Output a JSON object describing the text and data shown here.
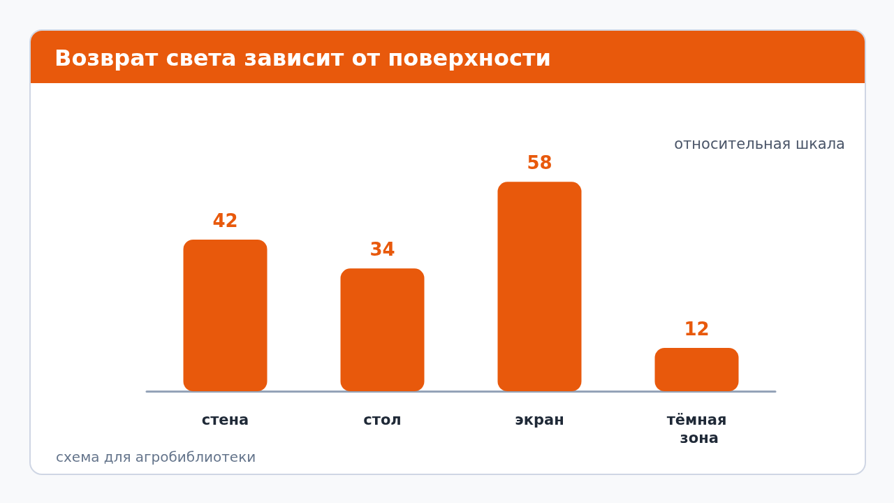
{
  "chart_data": {
    "type": "bar",
    "title": "Возврат света зависит от поверхности",
    "subtitle": "относительная шкала",
    "categories": [
      "стена",
      "стол",
      "экран",
      "тёмная зона"
    ],
    "values": [
      42,
      34,
      58,
      12
    ],
    "color": "#e8590c",
    "data_labels": true,
    "grid": false,
    "annotations": [
      "схема для агробиблиотеки"
    ]
  }
}
